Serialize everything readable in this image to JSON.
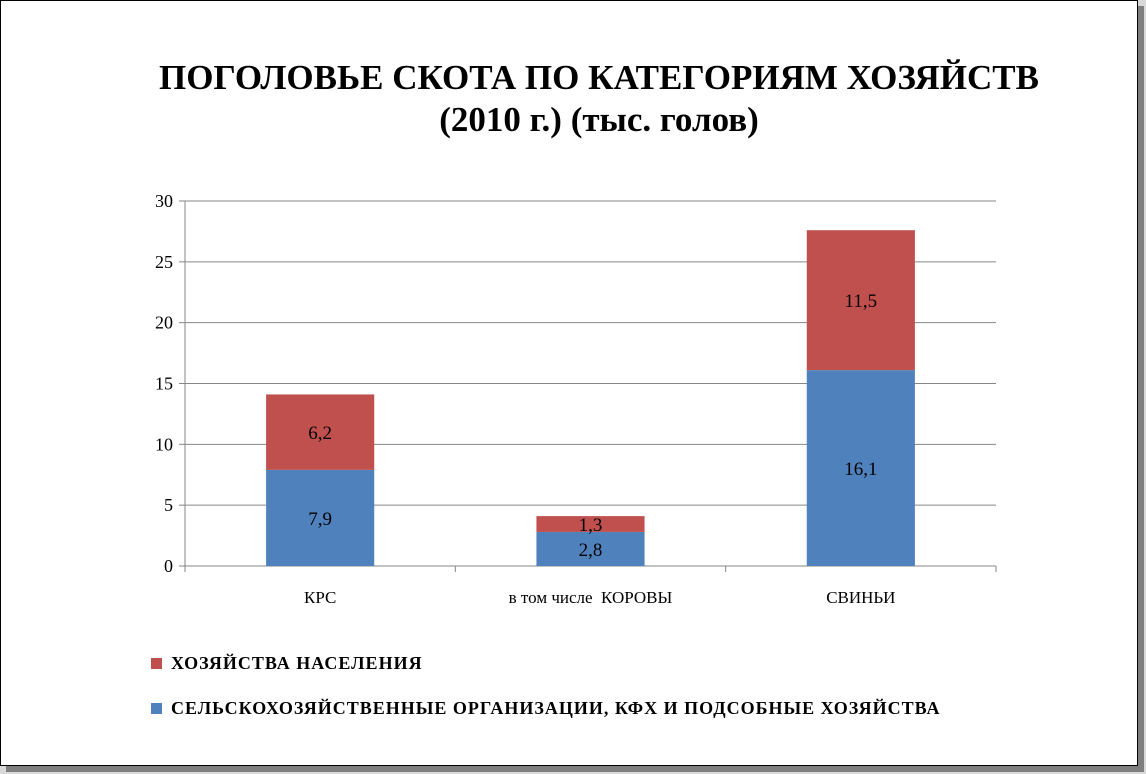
{
  "chart_data": {
    "type": "bar",
    "stacked": true,
    "title": "ПОГОЛОВЬЕ СКОТА ПО КАТЕГОРИЯМ ХОЗЯЙСТВ",
    "subtitle": "(2010 г.) (тыс. голов)",
    "categories": [
      "КРС",
      "в том числе  КОРОВЫ",
      "СВИНЬИ"
    ],
    "series": [
      {
        "name": "СЕЛЬСКОХОЗЯЙСТВЕННЫЕ  ОРГАНИЗАЦИИ,  КФХ  И  ПОДСОБНЫЕ  ХОЗЯЙСТВА",
        "values": [
          7.9,
          2.8,
          16.1
        ],
        "labels": [
          "7,9",
          "2,8",
          "16,1"
        ],
        "color": "#4f81bd"
      },
      {
        "name": "ХОЗЯЙСТВА  НАСЕЛЕНИЯ",
        "values": [
          6.2,
          1.3,
          11.5
        ],
        "labels": [
          "6,2",
          "1,3",
          "11,5"
        ],
        "color": "#c0504d"
      }
    ],
    "ylim": [
      0,
      30
    ],
    "yticks": [
      0,
      5,
      10,
      15,
      20,
      25,
      30
    ],
    "ytick_labels": [
      "0",
      "5",
      "10",
      "15",
      "20",
      "25",
      "30"
    ],
    "grid": true,
    "legend_position": "bottom",
    "xlabel": "",
    "ylabel": ""
  }
}
